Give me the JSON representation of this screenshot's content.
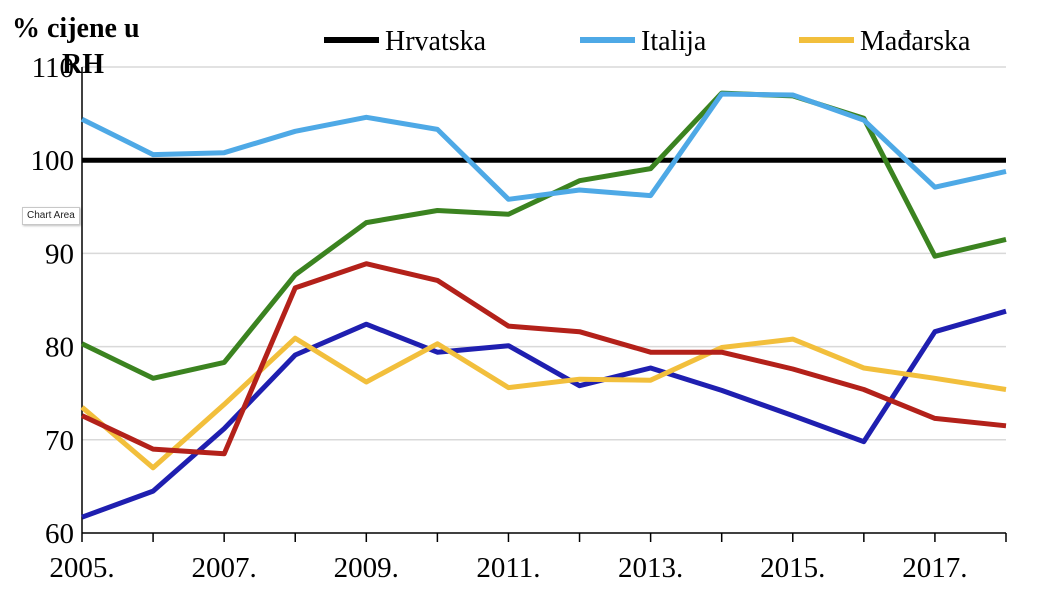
{
  "tooltip": "Chart Area",
  "chart_data": {
    "type": "line",
    "ylabel_lines": [
      "% cijene u",
      "RH"
    ],
    "ylim": [
      60,
      110
    ],
    "yticks": [
      60,
      70,
      80,
      90,
      100,
      110
    ],
    "x": [
      2005,
      2006,
      2007,
      2008,
      2009,
      2010,
      2011,
      2012,
      2013,
      2014,
      2015,
      2016,
      2017,
      2018
    ],
    "xtick_labels": [
      "2005.",
      "2007.",
      "2009.",
      "2011.",
      "2013.",
      "2015.",
      "2017."
    ],
    "xtick_values": [
      2005,
      2007,
      2009,
      2011,
      2013,
      2015,
      2017
    ],
    "grid": "horizontal",
    "legend_position": "top",
    "series": [
      {
        "name": "Hrvatska",
        "color": "#000000",
        "in_legend": true,
        "values": [
          100,
          100,
          100,
          100,
          100,
          100,
          100,
          100,
          100,
          100,
          100,
          100,
          100,
          100
        ]
      },
      {
        "name": "Italija",
        "color": "#4ea9e6",
        "in_legend": true,
        "values": [
          104.4,
          100.6,
          100.8,
          103.1,
          104.6,
          103.3,
          95.8,
          96.8,
          96.2,
          107.1,
          107.0,
          104.3,
          97.1,
          98.8
        ]
      },
      {
        "name": "Mađarska",
        "color": "#f2bf3c",
        "in_legend": true,
        "values": [
          73.5,
          67.0,
          73.8,
          80.9,
          76.2,
          80.3,
          75.6,
          76.5,
          76.4,
          79.9,
          80.8,
          77.7,
          76.6,
          75.4
        ]
      },
      {
        "name": "",
        "color": "#3b8320",
        "in_legend": false,
        "values": [
          80.3,
          76.6,
          78.3,
          87.7,
          93.3,
          94.6,
          94.2,
          97.8,
          99.1,
          107.2,
          106.9,
          104.5,
          89.7,
          91.5
        ]
      },
      {
        "name": "",
        "color": "#b3211a",
        "in_legend": false,
        "values": [
          72.6,
          69.0,
          68.5,
          86.3,
          88.9,
          87.1,
          82.2,
          81.6,
          79.4,
          79.4,
          77.6,
          75.4,
          72.3,
          71.5
        ]
      },
      {
        "name": "",
        "color": "#1f1fb0",
        "in_legend": false,
        "values": [
          61.7,
          64.5,
          71.2,
          79.1,
          82.4,
          79.4,
          80.1,
          75.8,
          77.7,
          75.3,
          72.6,
          69.8,
          81.6,
          83.8
        ]
      }
    ]
  }
}
